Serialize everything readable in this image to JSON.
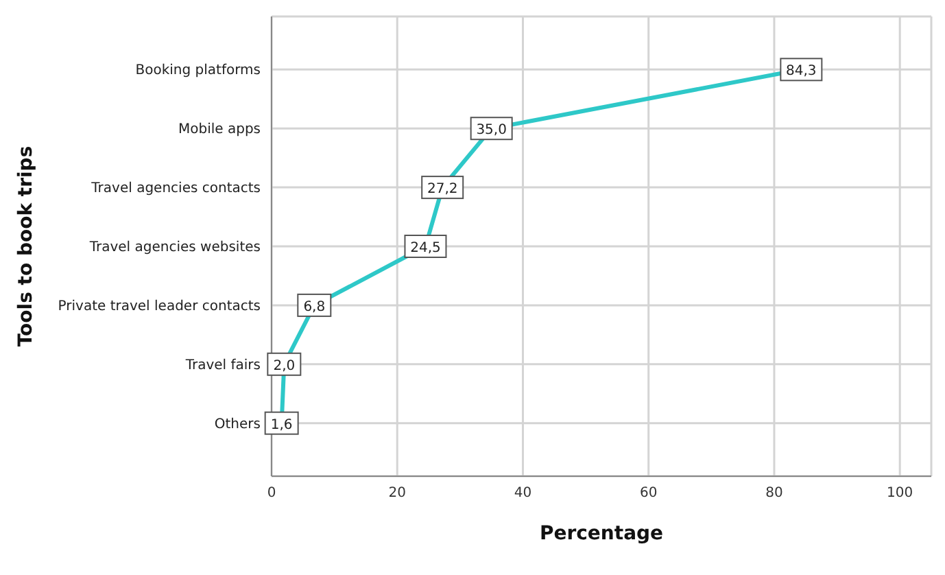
{
  "chart_data": {
    "type": "line",
    "orientation": "horizontal",
    "categories": [
      "Booking platforms",
      "Mobile apps",
      "Travel agencies contacts",
      "Travel agencies websites",
      "Private travel leader contacts",
      "Travel fairs",
      "Others"
    ],
    "values": [
      84.3,
      35.0,
      27.2,
      24.5,
      6.8,
      2.0,
      1.6
    ],
    "value_labels": [
      "84,3",
      "35,0",
      "27,2",
      "24,5",
      "6,8",
      "2,0",
      "1,6"
    ],
    "color": "#2ec8c8",
    "xlabel": "Percentage",
    "ylabel": "Tools to book trips",
    "xlim": [
      0,
      105
    ],
    "xticks": [
      0,
      20,
      40,
      60,
      80,
      100
    ],
    "grid": true,
    "marker": "square",
    "line_style": "solid"
  }
}
